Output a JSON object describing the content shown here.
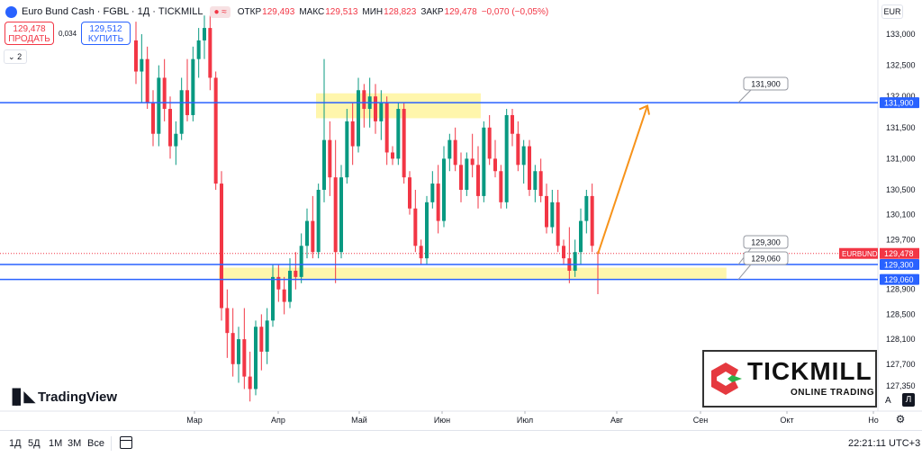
{
  "header": {
    "title": "Euro Bund Cash · FGBL · 1Д · TICKMILL",
    "ohlc": [
      {
        "label": "ОТКР",
        "value": "129,493"
      },
      {
        "label": "МАКС",
        "value": "129,513"
      },
      {
        "label": "МИН",
        "value": "128,823"
      },
      {
        "label": "ЗАКР",
        "value": "129,478"
      }
    ],
    "change": "−0,070 (−0,05%)",
    "sell_price": "129,478",
    "sell_label": "ПРОДАТЬ",
    "buy_price": "129,512",
    "buy_label": "КУПИТЬ",
    "spread": "0,034",
    "collapse_count": "2",
    "currency": "EUR"
  },
  "logos": {
    "tradingview": "TradingView",
    "tickmill_name": "TICKMILL",
    "tickmill_sub": "ONLINE TRADING"
  },
  "bottom_bar": {
    "ranges": [
      "1Д",
      "5Д",
      "1М",
      "3М",
      "Все"
    ],
    "clock": "22:21:11 UTC+3"
  },
  "scale_buttons": {
    "auto": "A",
    "log": "Л"
  },
  "colors": {
    "up": "#089981",
    "down": "#f23645",
    "level_line": "#2962ff",
    "zone": "#fff59d",
    "arrow": "#f7931a"
  },
  "chart_data": {
    "type": "candlestick",
    "symbol": "EURBUND",
    "last_price": 129.478,
    "y_ticks": [
      "133,000",
      "132,500",
      "132,000",
      "131,500",
      "131,000",
      "130,500",
      "130,100",
      "129,700",
      "129,300",
      "128,900",
      "128,500",
      "128,100",
      "127,700",
      "127,350"
    ],
    "x_ticks": [
      "Мар",
      "Апр",
      "Май",
      "Июн",
      "Июл",
      "Авг",
      "Сен",
      "Окт",
      "Но"
    ],
    "levels": [
      {
        "label": "131,900",
        "value": 131.9
      },
      {
        "label": "129,300",
        "value": 129.3
      },
      {
        "label": "129,060",
        "value": 129.06
      }
    ],
    "zones": [
      {
        "from_month": "2024-04-15",
        "to_month": "2024-06-15",
        "y_low": 131.65,
        "y_high": 132.05
      },
      {
        "from_month": "2024-03-10",
        "to_month": "2024-09-10",
        "y_low": 129.07,
        "y_high": 129.25
      }
    ],
    "projection": {
      "from": [
        "2024-07-27",
        129.47
      ],
      "to": [
        "2024-08-14",
        131.85
      ]
    },
    "ohlc": [
      [
        132.9,
        133.2,
        132.2,
        132.4
      ],
      [
        132.4,
        133.0,
        131.9,
        132.6
      ],
      [
        132.6,
        132.8,
        131.8,
        131.9
      ],
      [
        131.9,
        132.1,
        131.2,
        131.4
      ],
      [
        131.4,
        132.5,
        131.2,
        132.3
      ],
      [
        132.3,
        132.6,
        131.6,
        131.8
      ],
      [
        131.8,
        132.0,
        131.0,
        131.2
      ],
      [
        131.2,
        131.6,
        130.9,
        131.4
      ],
      [
        131.4,
        132.3,
        131.3,
        132.1
      ],
      [
        132.1,
        132.6,
        131.6,
        131.7
      ],
      [
        131.7,
        132.8,
        131.6,
        132.6
      ],
      [
        132.6,
        133.1,
        132.3,
        132.9
      ],
      [
        132.9,
        133.3,
        132.6,
        133.1
      ],
      [
        133.1,
        133.3,
        132.1,
        132.3
      ],
      [
        132.3,
        132.4,
        130.5,
        130.6
      ],
      [
        130.6,
        130.8,
        128.4,
        128.6
      ],
      [
        128.6,
        128.9,
        127.8,
        128.2
      ],
      [
        128.2,
        128.6,
        127.5,
        127.7
      ],
      [
        127.7,
        128.3,
        127.4,
        128.1
      ],
      [
        128.1,
        128.6,
        127.3,
        127.5
      ],
      [
        127.5,
        127.9,
        127.1,
        127.3
      ],
      [
        127.3,
        128.4,
        127.2,
        128.3
      ],
      [
        128.3,
        128.5,
        127.6,
        127.9
      ],
      [
        127.9,
        128.6,
        127.7,
        128.4
      ],
      [
        128.4,
        129.3,
        128.3,
        129.1
      ],
      [
        129.1,
        129.3,
        128.7,
        128.9
      ],
      [
        128.9,
        129.1,
        128.5,
        128.7
      ],
      [
        128.7,
        129.4,
        128.6,
        129.2
      ],
      [
        129.2,
        129.5,
        128.9,
        129.1
      ],
      [
        129.1,
        129.8,
        129.0,
        129.6
      ],
      [
        129.6,
        130.2,
        129.4,
        130.0
      ],
      [
        130.0,
        130.4,
        129.4,
        129.5
      ],
      [
        129.5,
        130.6,
        129.4,
        130.5
      ],
      [
        130.5,
        132.6,
        130.3,
        131.3
      ],
      [
        131.3,
        131.6,
        130.4,
        130.7
      ],
      [
        130.7,
        131.3,
        129.0,
        129.5
      ],
      [
        129.5,
        130.9,
        129.4,
        130.7
      ],
      [
        130.7,
        131.8,
        130.6,
        131.6
      ],
      [
        131.6,
        131.9,
        130.9,
        131.2
      ],
      [
        131.2,
        132.3,
        131.1,
        132.1
      ],
      [
        132.1,
        132.2,
        131.5,
        131.8
      ],
      [
        131.8,
        132.3,
        131.5,
        132.0
      ],
      [
        132.0,
        132.2,
        131.4,
        131.6
      ],
      [
        131.6,
        132.1,
        131.3,
        131.9
      ],
      [
        131.9,
        132.0,
        130.9,
        131.1
      ],
      [
        131.1,
        131.2,
        130.9,
        131.0
      ],
      [
        131.0,
        131.9,
        130.9,
        131.8
      ],
      [
        131.8,
        131.9,
        130.6,
        130.7
      ],
      [
        130.7,
        130.8,
        130.1,
        130.2
      ],
      [
        130.2,
        130.5,
        129.5,
        129.6
      ],
      [
        129.6,
        129.7,
        129.3,
        129.4
      ],
      [
        129.4,
        130.4,
        129.3,
        130.3
      ],
      [
        130.3,
        130.8,
        130.2,
        130.6
      ],
      [
        130.6,
        130.9,
        129.8,
        130.0
      ],
      [
        130.0,
        131.2,
        129.9,
        131.0
      ],
      [
        131.0,
        131.4,
        130.8,
        131.3
      ],
      [
        131.3,
        131.5,
        130.8,
        130.9
      ],
      [
        130.9,
        131.1,
        130.3,
        130.5
      ],
      [
        130.5,
        131.1,
        130.4,
        131.0
      ],
      [
        131.0,
        131.4,
        130.7,
        130.9
      ],
      [
        130.9,
        131.2,
        130.2,
        130.4
      ],
      [
        130.4,
        131.6,
        130.3,
        131.5
      ],
      [
        131.5,
        131.7,
        130.9,
        131.0
      ],
      [
        131.0,
        131.3,
        130.7,
        130.8
      ],
      [
        130.8,
        130.9,
        130.2,
        130.3
      ],
      [
        130.3,
        131.8,
        130.2,
        131.7
      ],
      [
        131.7,
        131.8,
        131.2,
        131.4
      ],
      [
        131.4,
        131.6,
        130.8,
        130.9
      ],
      [
        130.9,
        131.3,
        130.6,
        131.2
      ],
      [
        131.2,
        131.3,
        130.4,
        130.5
      ],
      [
        130.5,
        130.9,
        130.3,
        130.8
      ],
      [
        130.8,
        131.0,
        130.3,
        130.4
      ],
      [
        130.4,
        130.6,
        129.8,
        129.9
      ],
      [
        129.9,
        130.5,
        129.8,
        130.3
      ],
      [
        130.3,
        130.5,
        129.5,
        129.6
      ],
      [
        129.6,
        129.7,
        129.3,
        129.4
      ],
      [
        129.4,
        129.9,
        129.0,
        129.2
      ],
      [
        129.2,
        129.7,
        129.1,
        129.5
      ],
      [
        129.5,
        130.2,
        129.3,
        130.0
      ],
      [
        130.0,
        130.5,
        129.8,
        130.4
      ],
      [
        130.4,
        130.6,
        129.5,
        129.6
      ],
      [
        129.493,
        129.513,
        128.823,
        129.478
      ]
    ]
  }
}
